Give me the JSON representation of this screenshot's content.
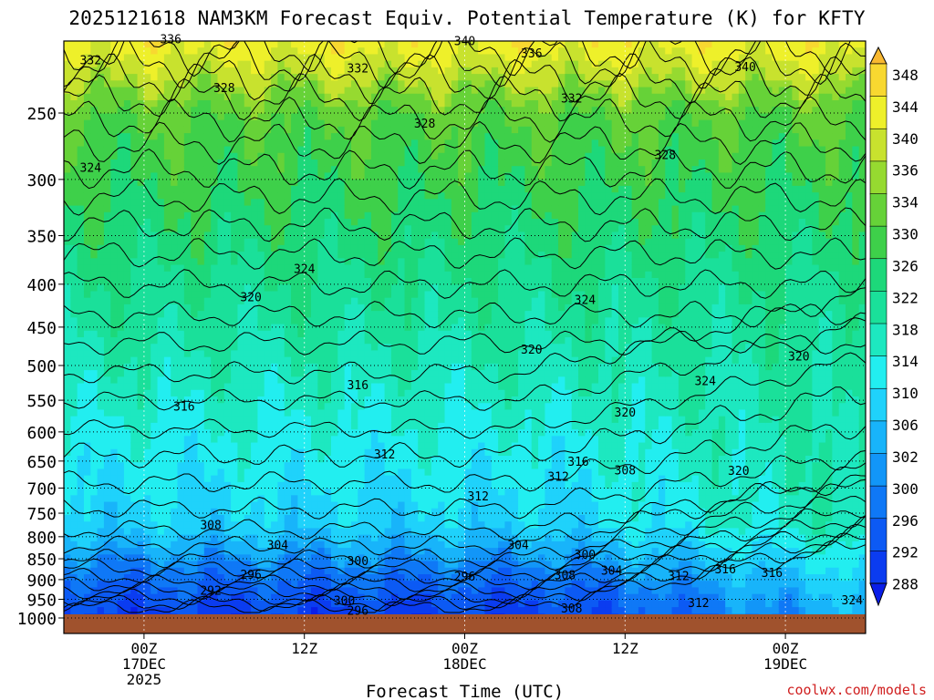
{
  "title": "2025121618 NAM3KM Forecast Equiv. Potential Temperature (K) for KFTY",
  "credit": "coolwx.com/models",
  "chart_data": {
    "type": "heatmap",
    "title": "2025121618 NAM3KM Forecast Equiv. Potential Temperature (K) for KFTY",
    "xlabel": "Forecast Time (UTC)",
    "ylabel": "",
    "y_ticks": [
      "250",
      "300",
      "350",
      "400",
      "450",
      "500",
      "550",
      "600",
      "650",
      "700",
      "750",
      "800",
      "850",
      "900",
      "950",
      "1000"
    ],
    "y_tick_values": [
      250,
      300,
      350,
      400,
      450,
      500,
      550,
      600,
      650,
      700,
      750,
      800,
      850,
      900,
      950,
      1000
    ],
    "ylim": [
      200,
      1000
    ],
    "y_scale": "log",
    "x_ticks": [
      {
        "hours": 6,
        "line1": "00Z",
        "line2": "17DEC",
        "line3": "2025"
      },
      {
        "hours": 18,
        "line1": "12Z",
        "line2": "",
        "line3": ""
      },
      {
        "hours": 30,
        "line1": "00Z",
        "line2": "18DEC",
        "line3": ""
      },
      {
        "hours": 42,
        "line1": "12Z",
        "line2": "",
        "line3": ""
      },
      {
        "hours": 54,
        "line1": "00Z",
        "line2": "19DEC",
        "line3": ""
      }
    ],
    "xlim": [
      0,
      60
    ],
    "grid": true,
    "colorbar": {
      "levels": [
        288,
        292,
        296,
        300,
        302,
        306,
        310,
        314,
        318,
        322,
        326,
        330,
        334,
        336,
        340,
        344,
        348
      ],
      "labels": [
        "348",
        "344",
        "340",
        "336",
        "334",
        "330",
        "326",
        "322",
        "318",
        "314",
        "310",
        "306",
        "302",
        "300",
        "296",
        "292",
        "288"
      ],
      "colors": [
        "#0a1ee8",
        "#0b3cf0",
        "#0c5af4",
        "#0f78f6",
        "#1296f8",
        "#18b4fa",
        "#1fd2fb",
        "#22eef0",
        "#1de8c0",
        "#1ae09a",
        "#1dd87a",
        "#3ed04a",
        "#66d238",
        "#96da30",
        "#c8e22e",
        "#eef02a",
        "#f8d830",
        "#f8b830"
      ],
      "extend": "both"
    },
    "isotherm_labels": [
      {
        "text": "336",
        "h": 8.0,
        "p": 204
      },
      {
        "text": "340",
        "h": 30.0,
        "p": 205
      },
      {
        "text": "332",
        "h": 2.0,
        "p": 216
      },
      {
        "text": "336",
        "h": 35.0,
        "p": 212
      },
      {
        "text": "332",
        "h": 22.0,
        "p": 221
      },
      {
        "text": "340",
        "h": 51.0,
        "p": 220
      },
      {
        "text": "328",
        "h": 12.0,
        "p": 233
      },
      {
        "text": "332",
        "h": 38.0,
        "p": 240
      },
      {
        "text": "328",
        "h": 27.0,
        "p": 257
      },
      {
        "text": "328",
        "h": 45.0,
        "p": 280
      },
      {
        "text": "324",
        "h": 2.0,
        "p": 290
      },
      {
        "text": "324",
        "h": 18.0,
        "p": 383
      },
      {
        "text": "320",
        "h": 14.0,
        "p": 414
      },
      {
        "text": "324",
        "h": 39.0,
        "p": 417
      },
      {
        "text": "320",
        "h": 35.0,
        "p": 478
      },
      {
        "text": "320",
        "h": 55.0,
        "p": 487
      },
      {
        "text": "316",
        "h": 22.0,
        "p": 527
      },
      {
        "text": "324",
        "h": 48.0,
        "p": 521
      },
      {
        "text": "316",
        "h": 9.0,
        "p": 559
      },
      {
        "text": "320",
        "h": 42.0,
        "p": 568
      },
      {
        "text": "312",
        "h": 24.0,
        "p": 637
      },
      {
        "text": "316",
        "h": 38.5,
        "p": 650
      },
      {
        "text": "308",
        "h": 42.0,
        "p": 666
      },
      {
        "text": "312",
        "h": 37.0,
        "p": 678
      },
      {
        "text": "320",
        "h": 50.5,
        "p": 667
      },
      {
        "text": "312",
        "h": 31.0,
        "p": 715
      },
      {
        "text": "308",
        "h": 11.0,
        "p": 774
      },
      {
        "text": "304",
        "h": 16.0,
        "p": 818
      },
      {
        "text": "304",
        "h": 34.0,
        "p": 818
      },
      {
        "text": "300",
        "h": 22.0,
        "p": 854
      },
      {
        "text": "300",
        "h": 39.0,
        "p": 839
      },
      {
        "text": "304",
        "h": 41.0,
        "p": 877
      },
      {
        "text": "316",
        "h": 49.5,
        "p": 874
      },
      {
        "text": "316",
        "h": 53.0,
        "p": 882
      },
      {
        "text": "296",
        "h": 14.0,
        "p": 887
      },
      {
        "text": "296",
        "h": 30.0,
        "p": 891
      },
      {
        "text": "308",
        "h": 37.5,
        "p": 888
      },
      {
        "text": "312",
        "h": 46.0,
        "p": 890
      },
      {
        "text": "292",
        "h": 11.0,
        "p": 926
      },
      {
        "text": "300",
        "h": 21.0,
        "p": 952
      },
      {
        "text": "312",
        "h": 47.5,
        "p": 958
      },
      {
        "text": "324",
        "h": 59.0,
        "p": 951
      },
      {
        "text": "296",
        "h": 22.0,
        "p": 979
      },
      {
        "text": "308",
        "h": 38.0,
        "p": 973
      }
    ]
  }
}
